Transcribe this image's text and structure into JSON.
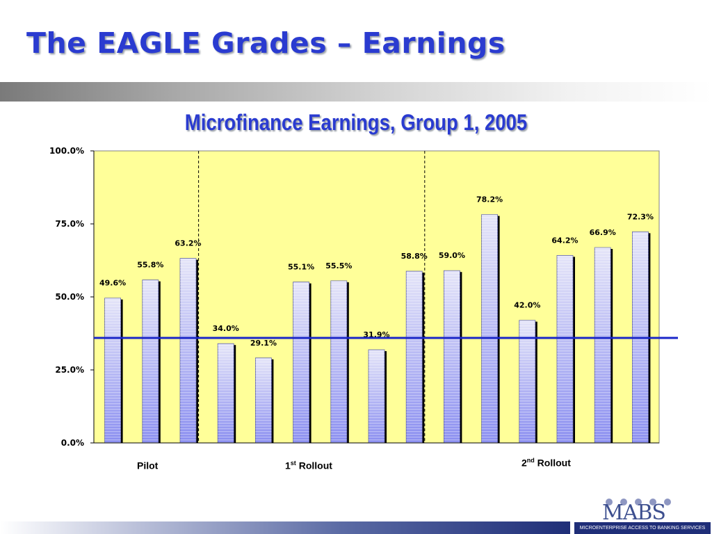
{
  "slide": {
    "title": "The EAGLE Grades – Earnings"
  },
  "chart_data": {
    "type": "bar",
    "title": "Microfinance Earnings, Group 1, 2005",
    "xlabel": "",
    "ylabel": "",
    "ylim": [
      0,
      100
    ],
    "yticks": [
      "0.0%",
      "25.0%",
      "50.0%",
      "75.0%",
      "100.0%"
    ],
    "values": [
      49.6,
      55.8,
      63.2,
      34.0,
      29.1,
      55.1,
      55.5,
      31.9,
      58.8,
      59.0,
      78.2,
      42.0,
      64.2,
      66.9,
      72.3
    ],
    "data_labels": [
      "49.6%",
      "55.8%",
      "63.2%",
      "34.0%",
      "29.1%",
      "55.1%",
      "55.5%",
      "31.9%",
      "58.8%",
      "59.0%",
      "78.2%",
      "42.0%",
      "64.2%",
      "66.9%",
      "72.3%"
    ],
    "groups": [
      {
        "name": "Pilot",
        "superscript": "",
        "suffix": ""
      },
      {
        "name": "1",
        "superscript": "st",
        "suffix": " Rollout"
      },
      {
        "name": "2",
        "superscript": "nd",
        "suffix": " Rollout"
      }
    ],
    "grid": false,
    "colors": {
      "plot_background": "#ffff99",
      "bar_fill_top": "#e4e4f8",
      "bar_fill_bottom": "#8a8ef0",
      "bar_shadow": "#000000",
      "reference_line": "#1a26c8",
      "divider": "#000000"
    }
  },
  "logo": {
    "mark": "MABS",
    "tagline": "MICROENTERPRISE ACCESS TO BANKING SERVICES"
  }
}
